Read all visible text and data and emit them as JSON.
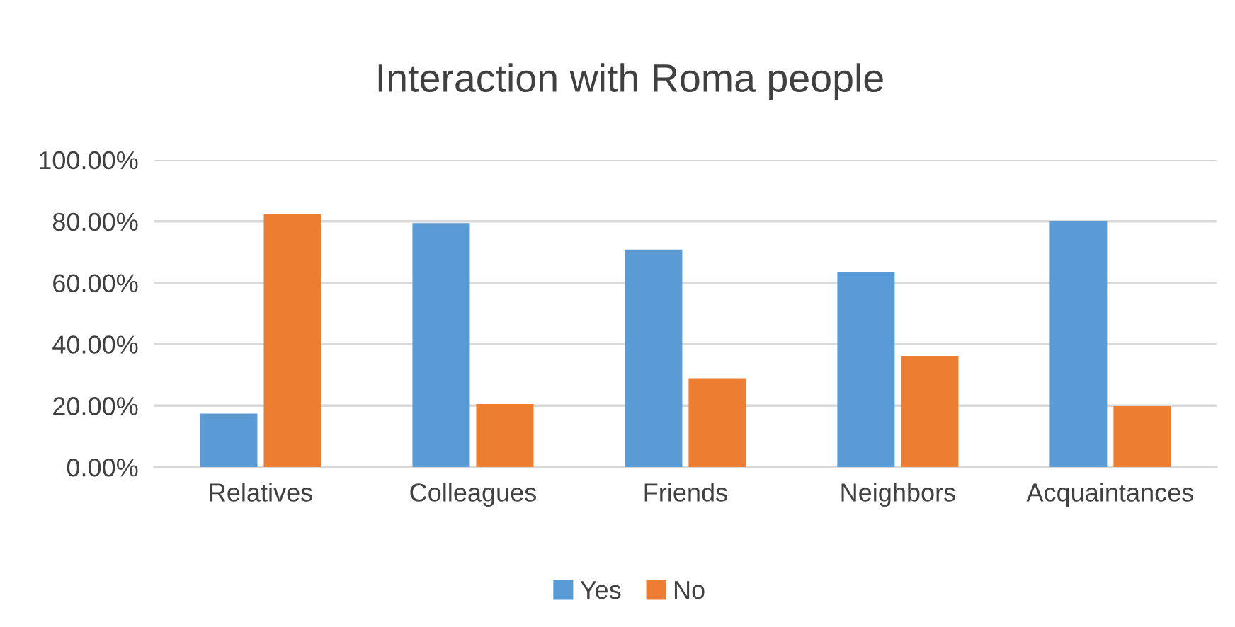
{
  "chart_data": {
    "type": "bar",
    "title": "Interaction with Roma people",
    "categories": [
      "Relatives",
      "Colleagues",
      "Friends",
      "Neighbors",
      "Acquaintances"
    ],
    "series": [
      {
        "name": "Yes",
        "color": "#5b9bd5",
        "values": [
          17.4,
          79.4,
          70.8,
          63.5,
          80.2
        ]
      },
      {
        "name": "No",
        "color": "#ed7d31",
        "values": [
          82.3,
          20.5,
          28.9,
          36.2,
          19.8
        ]
      }
    ],
    "ylim": [
      0,
      100
    ],
    "yticks": [
      {
        "value": 0,
        "label": "0.00%"
      },
      {
        "value": 20,
        "label": "20.00%"
      },
      {
        "value": 40,
        "label": "40.00%"
      },
      {
        "value": 60,
        "label": "60.00%"
      },
      {
        "value": 80,
        "label": "80.00%"
      },
      {
        "value": 100,
        "label": "100.00%"
      }
    ],
    "grid": "y",
    "legend": "bottom"
  }
}
